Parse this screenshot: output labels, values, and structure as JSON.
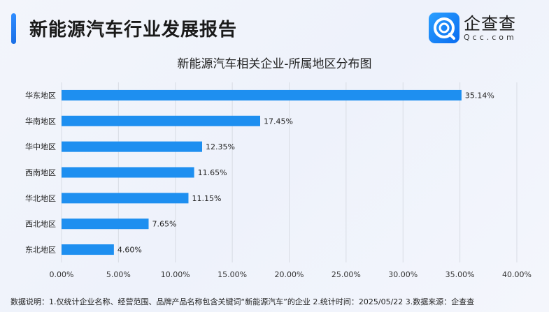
{
  "header": {
    "title": "新能源汽车行业发展报告",
    "logo_cn": "企查查",
    "logo_en": "Qcc.com"
  },
  "chart_data": {
    "type": "bar",
    "orientation": "horizontal",
    "title": "新能源汽车相关企业-所属地区分布图",
    "categories": [
      "华东地区",
      "华南地区",
      "华中地区",
      "西南地区",
      "华北地区",
      "西北地区",
      "东北地区"
    ],
    "values": [
      35.14,
      17.45,
      12.35,
      11.65,
      11.15,
      7.65,
      4.6
    ],
    "data_labels": [
      "35.14%",
      "17.45%",
      "12.35%",
      "11.65%",
      "11.15%",
      "7.65%",
      "4.60%"
    ],
    "xlim": [
      0,
      40
    ],
    "x_ticks": [
      "0.00%",
      "5.00%",
      "10.00%",
      "15.00%",
      "20.00%",
      "25.00%",
      "30.00%",
      "35.00%",
      "40.00%"
    ],
    "grid": "vertical",
    "bar_color": "#1e8ff0"
  },
  "footer": {
    "note": "数据说明：1.仅统计企业名称、经营范围、品牌产品名称包含关键词“新能源汽车”的企业   2.统计时间：2025/05/22    3.数据来源：企查查"
  }
}
